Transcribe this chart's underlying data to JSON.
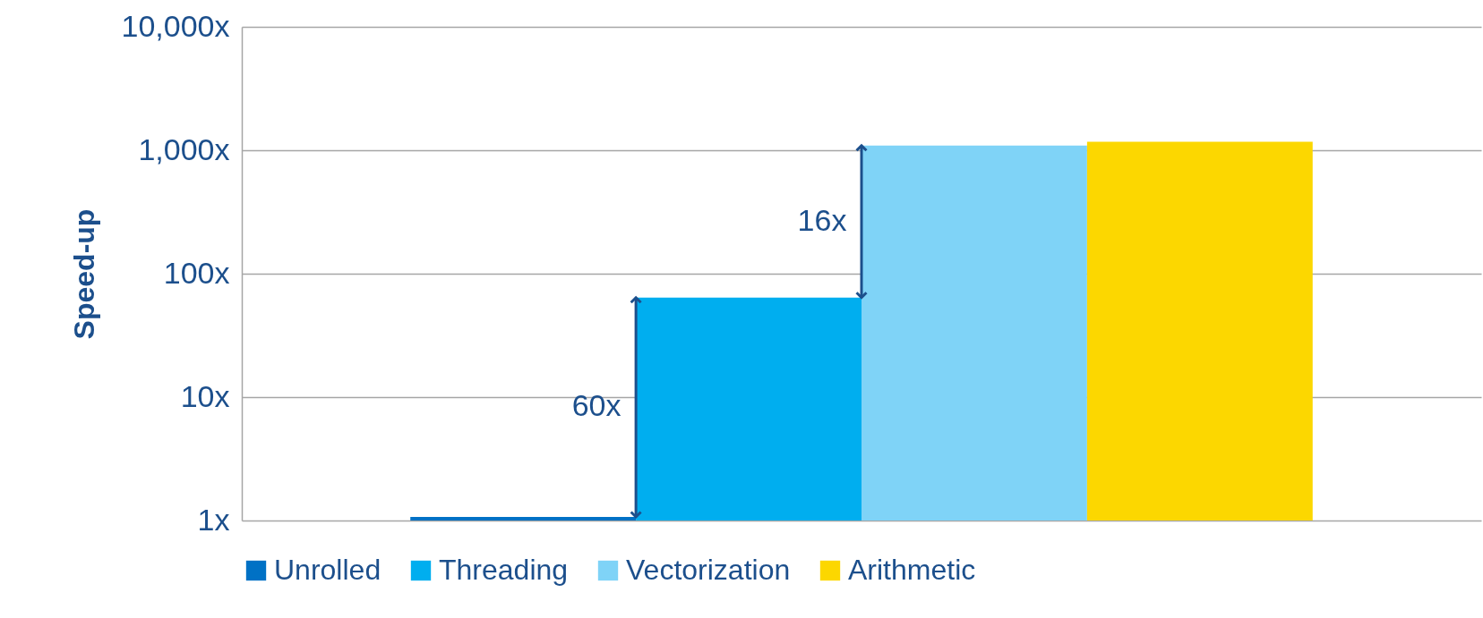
{
  "chart_data": {
    "type": "bar",
    "ylabel": "Speed-up",
    "categories": [
      null
    ],
    "series": [
      {
        "name": "Unrolled",
        "color": "#0071c5",
        "values": [
          1.07
        ]
      },
      {
        "name": "Threading",
        "color": "#00aeef",
        "values": [
          64
        ]
      },
      {
        "name": "Vectorization",
        "color": "#7fd3f7",
        "values": [
          1090
        ]
      },
      {
        "name": "Arithmetic",
        "color": "#fcd700",
        "values": [
          1170
        ]
      }
    ],
    "log": true,
    "ylim": [
      1,
      10000
    ],
    "yticks": [
      {
        "value": 1,
        "label": "1x"
      },
      {
        "value": 10,
        "label": "10x"
      },
      {
        "value": 100,
        "label": "100x"
      },
      {
        "value": 1000,
        "label": "1,000x"
      },
      {
        "value": 10000,
        "label": "10,000x"
      }
    ],
    "annotations": [
      "60x",
      "16x"
    ],
    "grid": "y",
    "legend": "bottom"
  }
}
